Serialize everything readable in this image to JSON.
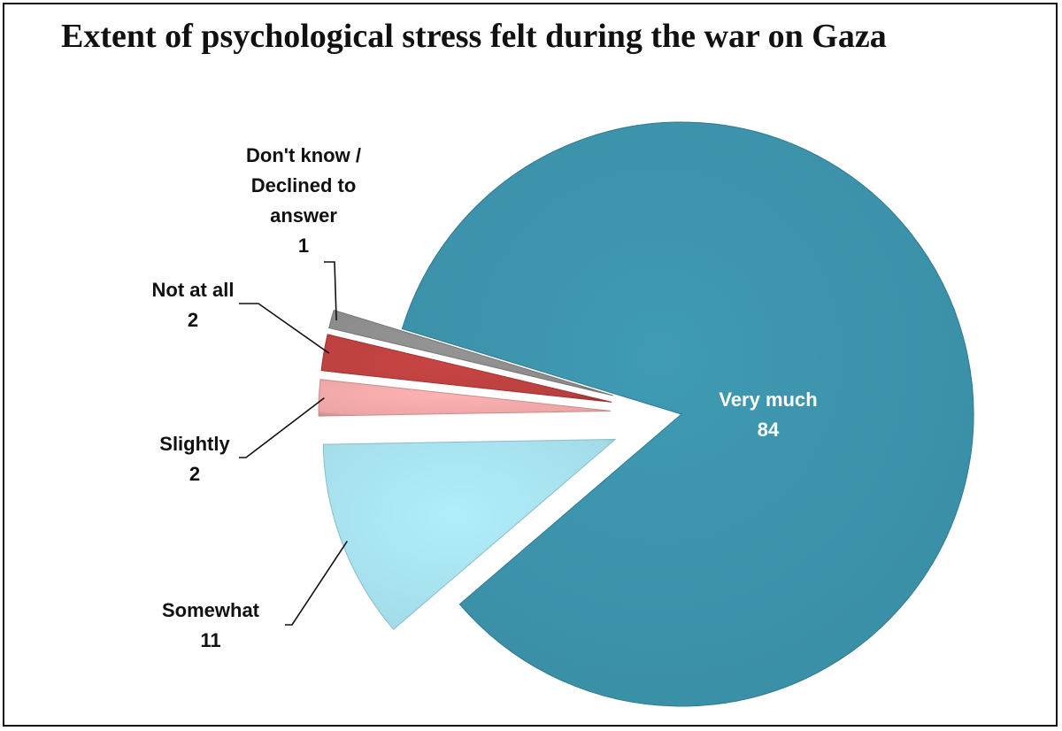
{
  "title": "Extent of psychological stress felt during the war on Gaza",
  "chart_data": {
    "type": "pie",
    "title": "Extent of psychological stress felt during the war on Gaza",
    "slices": [
      {
        "label": "Very much",
        "lines": [
          "Very much"
        ],
        "value": 84,
        "display": "84",
        "color": "#3a8fa6"
      },
      {
        "label": "Somewhat",
        "lines": [
          "Somewhat"
        ],
        "value": 11,
        "display": "11",
        "color": "#a3dce8"
      },
      {
        "label": "Slightly",
        "lines": [
          "Slightly"
        ],
        "value": 2,
        "display": "2",
        "color": "#eca5a5"
      },
      {
        "label": "Not at all",
        "lines": [
          "Not at all"
        ],
        "value": 2,
        "display": "2",
        "color": "#b9403e"
      },
      {
        "label": "Don't know / Declined to answer",
        "lines": [
          "Don't know /",
          "Declined to",
          "answer"
        ],
        "value": 1,
        "display": "1",
        "color": "#8a8a8a"
      }
    ]
  }
}
